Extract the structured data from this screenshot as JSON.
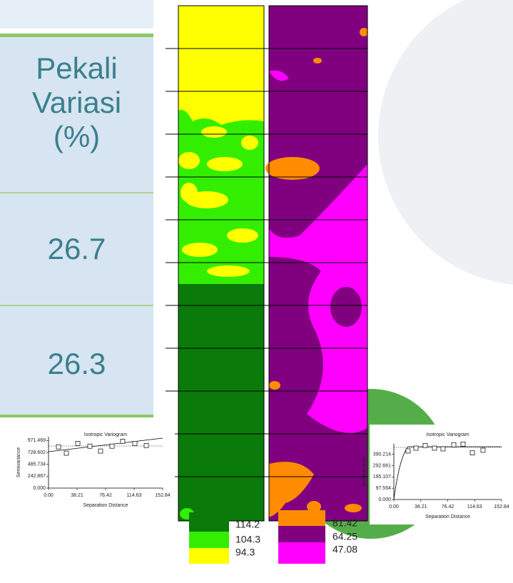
{
  "table": {
    "header": "Pekali Variasi (%)",
    "rows": [
      "26.7",
      "26.3"
    ]
  },
  "legends": [
    {
      "labels": [
        "114.2",
        "104.3",
        "94.3"
      ],
      "colors": [
        "#0a7a0a",
        "#33ee00",
        "#ffff00"
      ]
    },
    {
      "labels": [
        "81.42",
        "64.25",
        "47.08"
      ],
      "colors": [
        "#ff8c00",
        "#800080",
        "#ff00ff"
      ]
    }
  ],
  "chart_data": [
    {
      "type": "scatter",
      "title": "Isotropic Variogram",
      "xlabel": "Separation Distance",
      "ylabel": "Semivariance",
      "x": [
        13.4,
        23.9,
        39.2,
        55.4,
        69.7,
        85.0,
        99.3,
        115.6,
        130.9
      ],
      "values": [
        843,
        714,
        914,
        857,
        757,
        857,
        957,
        914,
        871
      ],
      "xlim": [
        0,
        152.84
      ],
      "ylim": [
        0,
        1050
      ],
      "xticks": [
        {
          "value": 0,
          "label": "0.00"
        },
        38.21,
        76.42,
        114.63,
        152.84
      ],
      "yticks": [
        {
          "value": 0,
          "label": "0.000"
        },
        242.867,
        485.734,
        728.602,
        971.469
      ]
    },
    {
      "type": "scatter",
      "title": "Isotropic Variogram",
      "xlabel": "Separation Distance",
      "ylabel": "Semivariance",
      "x": [
        20.2,
        31.4,
        44.5,
        57.7,
        69.8,
        85.0,
        98.2,
        111.4,
        126.5
      ],
      "values": [
        419,
        443,
        466,
        443,
        437,
        472,
        478,
        402,
        425
      ],
      "xlim": [
        0,
        152.84
      ],
      "ylim": [
        0,
        480
      ],
      "xticks": [
        {
          "value": 0,
          "label": "0.00"
        },
        38.21,
        76.42,
        114.63,
        152.84
      ],
      "yticks": [
        {
          "value": 0,
          "label": "0.000"
        },
        97.554,
        195.107,
        292.661,
        390.214
      ]
    }
  ]
}
